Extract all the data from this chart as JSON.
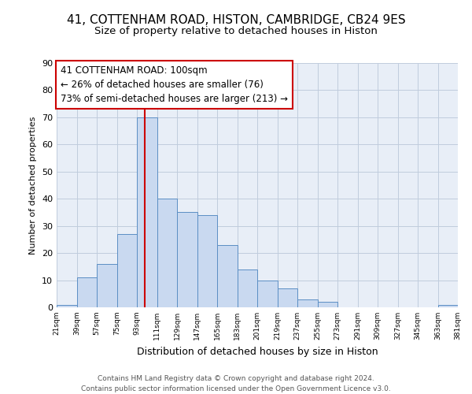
{
  "title1": "41, COTTENHAM ROAD, HISTON, CAMBRIDGE, CB24 9ES",
  "title2": "Size of property relative to detached houses in Histon",
  "xlabel": "Distribution of detached houses by size in Histon",
  "ylabel": "Number of detached properties",
  "footer1": "Contains HM Land Registry data © Crown copyright and database right 2024.",
  "footer2": "Contains public sector information licensed under the Open Government Licence v3.0.",
  "bar_left_edges": [
    21,
    39,
    57,
    75,
    93,
    111,
    129,
    147,
    165,
    183,
    201,
    219,
    237,
    255,
    273,
    291,
    309,
    327,
    345,
    363
  ],
  "bar_heights": [
    1,
    11,
    16,
    27,
    70,
    40,
    35,
    34,
    23,
    14,
    10,
    7,
    3,
    2,
    0,
    0,
    0,
    0,
    0,
    1
  ],
  "bin_width": 18,
  "bar_color": "#c9d9f0",
  "bar_edge_color": "#5b8ec4",
  "tick_labels": [
    "21sqm",
    "39sqm",
    "57sqm",
    "75sqm",
    "93sqm",
    "111sqm",
    "129sqm",
    "147sqm",
    "165sqm",
    "183sqm",
    "201sqm",
    "219sqm",
    "237sqm",
    "255sqm",
    "273sqm",
    "291sqm",
    "309sqm",
    "327sqm",
    "345sqm",
    "363sqm",
    "381sqm"
  ],
  "ylim": [
    0,
    90
  ],
  "yticks": [
    0,
    10,
    20,
    30,
    40,
    50,
    60,
    70,
    80,
    90
  ],
  "vline_x": 100,
  "vline_color": "#cc0000",
  "annotation_box_title": "41 COTTENHAM ROAD: 100sqm",
  "annotation_line1": "← 26% of detached houses are smaller (76)",
  "annotation_line2": "73% of semi-detached houses are larger (213) →",
  "annotation_box_color": "#cc0000",
  "grid_color": "#c0ccdd",
  "bg_color": "#e8eef7",
  "title1_fontsize": 11,
  "title2_fontsize": 9.5
}
